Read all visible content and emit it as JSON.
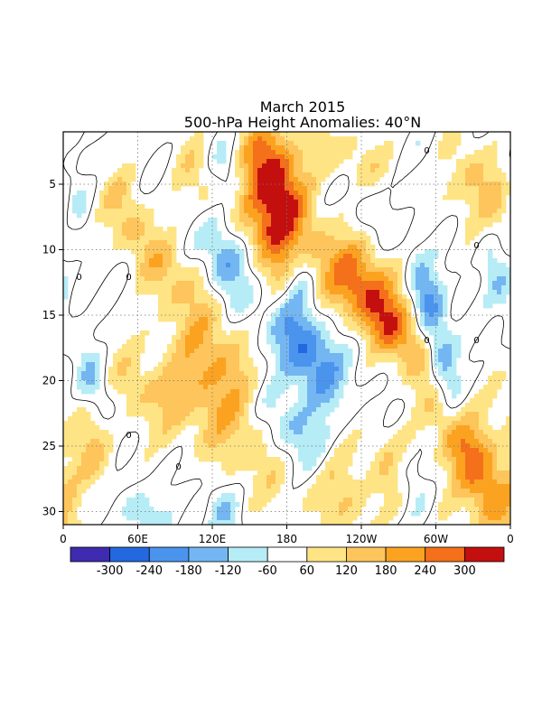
{
  "chart_data": {
    "type": "heatmap",
    "title": "March 2015",
    "subtitle": "500-hPa Height Anomalies: 40°N",
    "xlabel": "",
    "ylabel": "",
    "x_ticks": [
      "0",
      "60E",
      "120E",
      "180",
      "120W",
      "60W",
      "0"
    ],
    "y_ticks": [
      5,
      10,
      15,
      20,
      25,
      30
    ],
    "ylim": [
      1,
      31
    ],
    "y_direction": "day of month increases downward",
    "contour_zero_label": "0",
    "colorbar": {
      "labels": [
        "-300",
        "-240",
        "-180",
        "-120",
        "-60",
        "60",
        "120",
        "180",
        "240",
        "300"
      ],
      "colors": [
        "#3e2bb0",
        "#2468e0",
        "#4a94ee",
        "#74b6f2",
        "#b6ecf6",
        "#ffffff",
        "#fee485",
        "#fdc55b",
        "#fba320",
        "#f5701a",
        "#c40f0f"
      ],
      "bounds": [
        -360,
        -300,
        -240,
        -180,
        -120,
        -60,
        60,
        120,
        180,
        240,
        300,
        360
      ]
    },
    "features": [
      {
        "sign": 1,
        "lon": 170,
        "day": 4.5,
        "value": 320,
        "days_spread": 3.0,
        "lon_spread": 16,
        "slope": 2
      },
      {
        "sign": 1,
        "lon": 175,
        "day": 10,
        "value": 240,
        "days_spread": 3.5,
        "lon_spread": 18,
        "slope": 3
      },
      {
        "sign": 1,
        "lon": 260,
        "day": 15.5,
        "value": 250,
        "days_spread": 3.0,
        "lon_spread": 20,
        "slope": 8
      },
      {
        "sign": 1,
        "lon": 240,
        "day": 11.5,
        "value": 160,
        "days_spread": 2.5,
        "lon_spread": 22,
        "slope": 5
      },
      {
        "sign": 1,
        "lon": 120,
        "day": 18,
        "value": 150,
        "days_spread": 3.5,
        "lon_spread": 22,
        "slope": 3
      },
      {
        "sign": 1,
        "lon": 150,
        "day": 24,
        "value": 130,
        "days_spread": 4.0,
        "lon_spread": 30,
        "slope": 6
      },
      {
        "sign": 1,
        "lon": 55,
        "day": 8,
        "value": 140,
        "days_spread": 3.0,
        "lon_spread": 14,
        "slope": 4
      },
      {
        "sign": 1,
        "lon": 65,
        "day": 21,
        "value": 120,
        "days_spread": 2.5,
        "lon_spread": 25,
        "slope": 6
      },
      {
        "sign": 1,
        "lon": 330,
        "day": 5,
        "value": 160,
        "days_spread": 3.0,
        "lon_spread": 22,
        "slope": 5
      },
      {
        "sign": 1,
        "lon": 340,
        "day": 28,
        "value": 200,
        "days_spread": 3.5,
        "lon_spread": 18,
        "slope": 3
      },
      {
        "sign": 1,
        "lon": 225,
        "day": 28,
        "value": 140,
        "days_spread": 3.0,
        "lon_spread": 15,
        "slope": 2
      },
      {
        "sign": 1,
        "lon": 270,
        "day": 27,
        "value": 160,
        "days_spread": 2.5,
        "lon_spread": 15,
        "slope": 4
      },
      {
        "sign": 1,
        "lon": 315,
        "day": 24,
        "value": 140,
        "days_spread": 3.0,
        "lon_spread": 14,
        "slope": 5
      },
      {
        "sign": 1,
        "lon": 20,
        "day": 25,
        "value": 120,
        "days_spread": 3.0,
        "lon_spread": 15,
        "slope": 4
      },
      {
        "sign": 1,
        "lon": 115,
        "day": 5,
        "value": 110,
        "days_spread": 3.0,
        "lon_spread": 16,
        "slope": 4
      },
      {
        "sign": 1,
        "lon": 90,
        "day": 12,
        "value": 90,
        "days_spread": 2.0,
        "lon_spread": 14,
        "slope": 4
      },
      {
        "sign": 1,
        "lon": 230,
        "day": 3,
        "value": 100,
        "days_spread": 2.0,
        "lon_spread": 25,
        "slope": 6
      },
      {
        "sign": -1,
        "lon": 195,
        "day": 17.5,
        "value": 260,
        "days_spread": 3.0,
        "lon_spread": 18,
        "slope": 4
      },
      {
        "sign": -1,
        "lon": 190,
        "day": 12,
        "value": 190,
        "days_spread": 2.0,
        "lon_spread": 10,
        "slope": 1
      },
      {
        "sign": -1,
        "lon": 130,
        "day": 10.5,
        "value": 200,
        "days_spread": 2.5,
        "lon_spread": 12,
        "slope": 2
      },
      {
        "sign": -1,
        "lon": 185,
        "day": 24,
        "value": 190,
        "days_spread": 2.5,
        "lon_spread": 22,
        "slope": 6
      },
      {
        "sign": -1,
        "lon": 305,
        "day": 18.5,
        "value": 230,
        "days_spread": 3.0,
        "lon_spread": 10,
        "slope": 2
      },
      {
        "sign": -1,
        "lon": 290,
        "day": 13,
        "value": 150,
        "days_spread": 2.0,
        "lon_spread": 10,
        "slope": 2
      },
      {
        "sign": -1,
        "lon": 280,
        "day": 28,
        "value": 160,
        "days_spread": 2.0,
        "lon_spread": 10,
        "slope": 3
      },
      {
        "sign": -1,
        "lon": 130,
        "day": 4,
        "value": 110,
        "days_spread": 2.0,
        "lon_spread": 10,
        "slope": 2
      },
      {
        "sign": -1,
        "lon": 25,
        "day": 20,
        "value": 150,
        "days_spread": 2.0,
        "lon_spread": 10,
        "slope": 3
      },
      {
        "sign": -1,
        "lon": 60,
        "day": 30,
        "value": 120,
        "days_spread": 1.5,
        "lon_spread": 14,
        "slope": 3
      },
      {
        "sign": -1,
        "lon": 10,
        "day": 6,
        "value": 90,
        "days_spread": 2.0,
        "lon_spread": 8,
        "slope": 2
      },
      {
        "sign": -1,
        "lon": 350,
        "day": 12,
        "value": 100,
        "days_spread": 3.0,
        "lon_spread": 8,
        "slope": 3
      },
      {
        "sign": -1,
        "lon": 300,
        "day": 3,
        "value": 80,
        "days_spread": 2.0,
        "lon_spread": 15,
        "slope": 3
      },
      {
        "sign": -1,
        "lon": 245,
        "day": 7,
        "value": 70,
        "days_spread": 2.0,
        "lon_spread": 12,
        "slope": 5
      },
      {
        "sign": -1,
        "lon": 130,
        "day": 30,
        "value": 100,
        "days_spread": 1.5,
        "lon_spread": 10,
        "slope": 3
      }
    ]
  }
}
